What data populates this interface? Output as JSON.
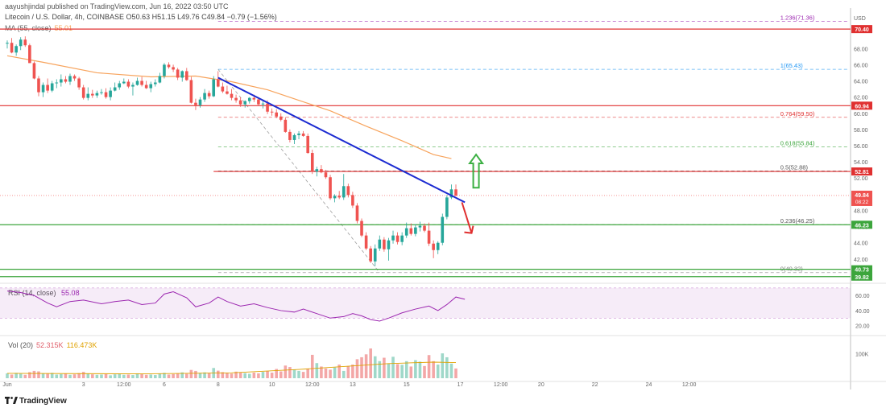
{
  "header": {
    "published": "aayushjindal published on TradingView.com, Jun 16, 2022 03:50 UTC",
    "symbol_line": "Litecoin / U.S. Dollar, 4h, COINBASE  O50.63  H51.15  L49.76  C49.84  −0.79 (−1.56%)",
    "ma_label": "MA (55, close)",
    "ma_value": "55.01"
  },
  "brand": {
    "name": "TradingView"
  },
  "colors": {
    "up": "#26a69a",
    "down": "#ef5350",
    "ma": "#f7a35c",
    "trendline": "#1c2bd1",
    "resistance": "#e03030",
    "support": "#3ca53c",
    "fib": "#7f7f7f",
    "rsi": "#9c27b0",
    "arrow_up": "#3cb043",
    "arrow_down": "#e03030"
  },
  "chart_data": [
    {
      "type": "candlestick",
      "title": "",
      "ylabel": "USD",
      "y_axis_label": "USD",
      "ylim": [
        39.2,
        72.6
      ],
      "yticks": [
        42,
        44,
        46,
        48,
        50,
        52,
        54,
        56,
        58,
        60,
        62,
        64,
        66,
        68
      ],
      "x_ticks": [
        {
          "label": "Jun",
          "i": 0
        },
        {
          "label": "3",
          "i": 17
        },
        {
          "label": "12:00",
          "i": 26
        },
        {
          "label": "6",
          "i": 35
        },
        {
          "label": "8",
          "i": 47
        },
        {
          "label": "10",
          "i": 59
        },
        {
          "label": "12:00",
          "i": 68
        },
        {
          "label": "13",
          "i": 77
        },
        {
          "label": "15",
          "i": 89
        },
        {
          "label": "17",
          "i": 101
        },
        {
          "label": "12:00",
          "i": 110
        },
        {
          "label": "20",
          "i": 119
        },
        {
          "label": "22",
          "i": 131
        },
        {
          "label": "24",
          "i": 143
        },
        {
          "label": "12:00",
          "i": 152
        }
      ],
      "candles": [
        [
          68.6,
          69.0,
          68.0,
          68.7
        ],
        [
          68.7,
          69.3,
          67.4,
          67.5
        ],
        [
          67.5,
          68.5,
          67.1,
          68.3
        ],
        [
          68.3,
          69.4,
          67.8,
          69.1
        ],
        [
          69.1,
          69.5,
          68.2,
          68.4
        ],
        [
          68.4,
          68.6,
          66.2,
          66.2
        ],
        [
          66.2,
          66.4,
          64.2,
          64.3
        ],
        [
          64.3,
          64.6,
          62.1,
          62.6
        ],
        [
          62.6,
          63.8,
          62.0,
          63.5
        ],
        [
          63.5,
          64.3,
          62.5,
          62.8
        ],
        [
          62.8,
          64.0,
          62.6,
          63.7
        ],
        [
          63.7,
          64.2,
          63.1,
          63.8
        ],
        [
          63.8,
          64.8,
          63.3,
          64.2
        ],
        [
          64.2,
          64.6,
          63.7,
          63.9
        ],
        [
          63.9,
          64.9,
          63.5,
          64.6
        ],
        [
          64.6,
          64.8,
          64.0,
          64.3
        ],
        [
          64.3,
          64.5,
          62.9,
          63.2
        ],
        [
          63.2,
          63.5,
          61.7,
          61.9
        ],
        [
          61.9,
          63.2,
          61.6,
          62.4
        ],
        [
          62.4,
          62.9,
          61.9,
          62.2
        ],
        [
          62.2,
          62.8,
          61.9,
          62.5
        ],
        [
          62.5,
          63.0,
          62.3,
          62.6
        ],
        [
          62.6,
          63.1,
          61.8,
          62.0
        ],
        [
          62.0,
          63.2,
          61.6,
          62.8
        ],
        [
          62.8,
          63.8,
          62.7,
          63.2
        ],
        [
          63.2,
          64.0,
          62.9,
          63.7
        ],
        [
          63.7,
          64.3,
          63.6,
          63.9
        ],
        [
          63.9,
          64.2,
          63.1,
          63.3
        ],
        [
          63.3,
          63.8,
          62.2,
          63.5
        ],
        [
          63.5,
          64.4,
          63.4,
          64.0
        ],
        [
          64.0,
          64.5,
          63.3,
          63.5
        ],
        [
          63.5,
          64.0,
          63.0,
          63.1
        ],
        [
          63.1,
          63.9,
          62.6,
          63.6
        ],
        [
          63.6,
          64.2,
          63.3,
          63.8
        ],
        [
          63.8,
          65.0,
          63.7,
          64.6
        ],
        [
          64.6,
          66.2,
          64.3,
          66.0
        ],
        [
          66.0,
          66.3,
          65.5,
          65.7
        ],
        [
          65.7,
          66.0,
          65.1,
          65.4
        ],
        [
          65.4,
          65.6,
          64.1,
          64.4
        ],
        [
          64.4,
          65.3,
          63.9,
          65.2
        ],
        [
          65.2,
          65.6,
          64.0,
          64.1
        ],
        [
          64.1,
          64.5,
          61.2,
          61.3
        ],
        [
          61.3,
          61.8,
          60.4,
          61.0
        ],
        [
          61.0,
          62.0,
          60.7,
          61.7
        ],
        [
          61.7,
          63.0,
          61.4,
          62.5
        ],
        [
          62.5,
          62.8,
          61.8,
          62.1
        ],
        [
          62.1,
          64.6,
          62.0,
          64.2
        ],
        [
          64.2,
          65.2,
          63.2,
          63.3
        ],
        [
          63.3,
          63.8,
          62.5,
          62.7
        ],
        [
          62.7,
          63.4,
          62.3,
          62.4
        ],
        [
          62.4,
          63.0,
          61.6,
          61.9
        ],
        [
          61.9,
          62.3,
          61.3,
          61.6
        ],
        [
          61.6,
          62.0,
          60.8,
          61.1
        ],
        [
          61.1,
          61.6,
          60.7,
          61.5
        ],
        [
          61.5,
          62.0,
          61.2,
          61.9
        ],
        [
          61.9,
          62.3,
          61.4,
          61.7
        ],
        [
          61.7,
          61.9,
          60.9,
          61.1
        ],
        [
          61.1,
          61.7,
          60.6,
          61.2
        ],
        [
          61.2,
          61.6,
          59.9,
          60.2
        ],
        [
          60.2,
          60.6,
          59.7,
          60.1
        ],
        [
          60.1,
          60.5,
          59.4,
          59.6
        ],
        [
          59.6,
          60.0,
          59.0,
          59.2
        ],
        [
          59.2,
          59.5,
          57.6,
          57.7
        ],
        [
          57.7,
          58.0,
          56.4,
          56.7
        ],
        [
          56.7,
          57.5,
          56.2,
          57.3
        ],
        [
          57.3,
          57.8,
          56.8,
          57.5
        ],
        [
          57.5,
          57.8,
          57.1,
          57.2
        ],
        [
          57.2,
          57.5,
          55.0,
          55.1
        ],
        [
          55.1,
          55.5,
          52.5,
          52.8
        ],
        [
          52.8,
          53.4,
          52.2,
          53.1
        ],
        [
          53.1,
          53.6,
          52.6,
          52.7
        ],
        [
          52.7,
          53.0,
          51.9,
          52.1
        ],
        [
          52.1,
          52.4,
          49.3,
          49.5
        ],
        [
          49.5,
          50.0,
          49.0,
          49.8
        ],
        [
          49.8,
          50.4,
          49.4,
          49.6
        ],
        [
          49.6,
          52.5,
          49.3,
          51.0
        ],
        [
          51.0,
          51.3,
          49.6,
          49.9
        ],
        [
          49.9,
          50.3,
          48.3,
          48.6
        ],
        [
          48.6,
          48.9,
          46.4,
          46.7
        ],
        [
          46.7,
          47.0,
          44.7,
          44.9
        ],
        [
          44.9,
          45.3,
          43.1,
          43.3
        ],
        [
          43.3,
          43.6,
          41.5,
          41.7
        ],
        [
          41.7,
          43.8,
          41.1,
          43.3
        ],
        [
          43.3,
          44.9,
          43.0,
          44.4
        ],
        [
          44.4,
          44.7,
          42.9,
          43.2
        ],
        [
          43.2,
          44.6,
          41.8,
          44.3
        ],
        [
          44.3,
          45.5,
          43.9,
          44.9
        ],
        [
          44.9,
          45.3,
          43.8,
          44.1
        ],
        [
          44.1,
          45.3,
          43.7,
          44.9
        ],
        [
          44.9,
          46.5,
          44.6,
          45.8
        ],
        [
          45.8,
          46.4,
          44.9,
          45.1
        ],
        [
          45.1,
          46.3,
          44.8,
          45.9
        ],
        [
          45.9,
          46.6,
          45.4,
          46.1
        ],
        [
          46.1,
          46.4,
          45.3,
          45.5
        ],
        [
          45.5,
          46.5,
          43.6,
          43.9
        ],
        [
          43.9,
          44.3,
          42.1,
          43.1
        ],
        [
          43.1,
          44.2,
          42.6,
          44.0
        ],
        [
          44.0,
          47.6,
          43.7,
          47.2
        ],
        [
          47.2,
          49.9,
          46.9,
          49.6
        ],
        [
          49.6,
          51.2,
          49.4,
          50.6
        ],
        [
          50.6,
          51.2,
          49.8,
          49.8
        ]
      ],
      "moving_average": [
        {
          "i": 0,
          "v": 67.1
        },
        {
          "i": 8,
          "v": 66.3
        },
        {
          "i": 20,
          "v": 65.0
        },
        {
          "i": 32,
          "v": 64.5
        },
        {
          "i": 42,
          "v": 64.6
        },
        {
          "i": 50,
          "v": 63.9
        },
        {
          "i": 58,
          "v": 62.9
        },
        {
          "i": 65,
          "v": 61.6
        },
        {
          "i": 72,
          "v": 60.3
        },
        {
          "i": 80,
          "v": 58.4
        },
        {
          "i": 88,
          "v": 56.6
        },
        {
          "i": 95,
          "v": 54.9
        },
        {
          "i": 99,
          "v": 54.4
        }
      ],
      "trendline": {
        "from": {
          "i": 47,
          "v": 64.4
        },
        "to": {
          "i": 102,
          "v": 49.0
        }
      },
      "horizontal_levels": [
        {
          "price": 70.4,
          "label": "70.40",
          "color": "resistance"
        },
        {
          "price": 60.94,
          "label": "60.94",
          "color": "resistance"
        },
        {
          "price": 52.81,
          "label": "52.81",
          "color": "resistance"
        },
        {
          "price": 46.23,
          "label": "46.23",
          "color": "support"
        },
        {
          "price": 40.73,
          "label": "40.73",
          "color": "support"
        },
        {
          "price": 39.82,
          "label": "39.82",
          "color": "support"
        }
      ],
      "current_price": {
        "price": 49.84,
        "label": "49.84",
        "countdown": "08:22"
      },
      "fib_levels": [
        {
          "ratio": "1.236",
          "price": 71.36,
          "label": "1.236(71.36)",
          "color": "#9c27b0"
        },
        {
          "ratio": "1",
          "price": 65.43,
          "label": "1(65.43)",
          "color": "#2196f3"
        },
        {
          "ratio": "0.764",
          "price": 59.5,
          "label": "0.764(59.50)",
          "color": "#e03030"
        },
        {
          "ratio": "0.618",
          "price": 55.84,
          "label": "0.618(55.84)",
          "color": "#3ca53c"
        },
        {
          "ratio": "0.5",
          "price": 52.88,
          "label": "0.5(52.88)",
          "color": "#555555"
        },
        {
          "ratio": "0.236",
          "price": 46.25,
          "label": "0.236(46.25)",
          "color": "#555555"
        },
        {
          "ratio": "0",
          "price": 40.32,
          "label": "0(40.32)",
          "color": "#7f7f7f"
        }
      ],
      "fib_anchor": {
        "start": {
          "i": 47,
          "v": 65.43
        },
        "end": {
          "i": 83,
          "v": 40.32
        }
      },
      "arrows": [
        {
          "direction": "up",
          "i": 104.5,
          "from_v": 50.8,
          "to_v": 54.9
        },
        {
          "direction": "down",
          "i": 103.5,
          "from_v": 49.0,
          "to_v": 45.2
        }
      ]
    },
    {
      "type": "line",
      "title": "",
      "label": "RSI (14, close)",
      "value": "55.08",
      "ylim": [
        10,
        72
      ],
      "yticks": [
        20,
        40,
        60
      ],
      "band": [
        30,
        70
      ],
      "values": [
        {
          "i": 0,
          "v": 66
        },
        {
          "i": 3,
          "v": 64
        },
        {
          "i": 6,
          "v": 60
        },
        {
          "i": 9,
          "v": 50
        },
        {
          "i": 11,
          "v": 45
        },
        {
          "i": 14,
          "v": 52
        },
        {
          "i": 17,
          "v": 54
        },
        {
          "i": 21,
          "v": 49
        },
        {
          "i": 24,
          "v": 52
        },
        {
          "i": 27,
          "v": 54
        },
        {
          "i": 30,
          "v": 48
        },
        {
          "i": 33,
          "v": 50
        },
        {
          "i": 35,
          "v": 62
        },
        {
          "i": 37,
          "v": 65
        },
        {
          "i": 40,
          "v": 57
        },
        {
          "i": 42,
          "v": 45
        },
        {
          "i": 45,
          "v": 50
        },
        {
          "i": 47,
          "v": 58
        },
        {
          "i": 49,
          "v": 52
        },
        {
          "i": 52,
          "v": 46
        },
        {
          "i": 55,
          "v": 49
        },
        {
          "i": 58,
          "v": 44
        },
        {
          "i": 61,
          "v": 40
        },
        {
          "i": 64,
          "v": 38
        },
        {
          "i": 66,
          "v": 42
        },
        {
          "i": 69,
          "v": 36
        },
        {
          "i": 72,
          "v": 30
        },
        {
          "i": 75,
          "v": 32
        },
        {
          "i": 77,
          "v": 36
        },
        {
          "i": 79,
          "v": 33
        },
        {
          "i": 81,
          "v": 28
        },
        {
          "i": 83,
          "v": 26
        },
        {
          "i": 85,
          "v": 30
        },
        {
          "i": 88,
          "v": 37
        },
        {
          "i": 91,
          "v": 42
        },
        {
          "i": 94,
          "v": 46
        },
        {
          "i": 96,
          "v": 40
        },
        {
          "i": 98,
          "v": 48
        },
        {
          "i": 100,
          "v": 58
        },
        {
          "i": 102,
          "v": 55
        }
      ]
    },
    {
      "type": "bar",
      "title": "",
      "label": "Vol (20)",
      "value_1": "52.315K",
      "value_2": "116.473K",
      "ylim": [
        0,
        165
      ],
      "yticks": [
        {
          "v": 100,
          "label": "100K"
        }
      ],
      "values": [
        20,
        15,
        22,
        18,
        14,
        25,
        30,
        28,
        20,
        18,
        22,
        15,
        17,
        19,
        14,
        16,
        21,
        26,
        18,
        16,
        14,
        15,
        17,
        12,
        16,
        18,
        14,
        15,
        13,
        20,
        17,
        14,
        15,
        13,
        18,
        22,
        15,
        17,
        20,
        24,
        18,
        34,
        30,
        22,
        24,
        20,
        42,
        31,
        25,
        22,
        19,
        27,
        24,
        21,
        18,
        23,
        20,
        26,
        30,
        23,
        38,
        28,
        52,
        46,
        36,
        30,
        26,
        40,
        96,
        62,
        48,
        40,
        35,
        44,
        56,
        30,
        50,
        56,
        78,
        86,
        98,
        122,
        90,
        70,
        84,
        60,
        88,
        58,
        55,
        70,
        48,
        74,
        68,
        50,
        95,
        70,
        56,
        102,
        86,
        60,
        40
      ],
      "ma": [
        {
          "i": 0,
          "v": 20
        },
        {
          "i": 30,
          "v": 18
        },
        {
          "i": 50,
          "v": 22
        },
        {
          "i": 65,
          "v": 36
        },
        {
          "i": 75,
          "v": 48
        },
        {
          "i": 85,
          "v": 60
        },
        {
          "i": 95,
          "v": 66
        },
        {
          "i": 100,
          "v": 64
        }
      ]
    }
  ]
}
